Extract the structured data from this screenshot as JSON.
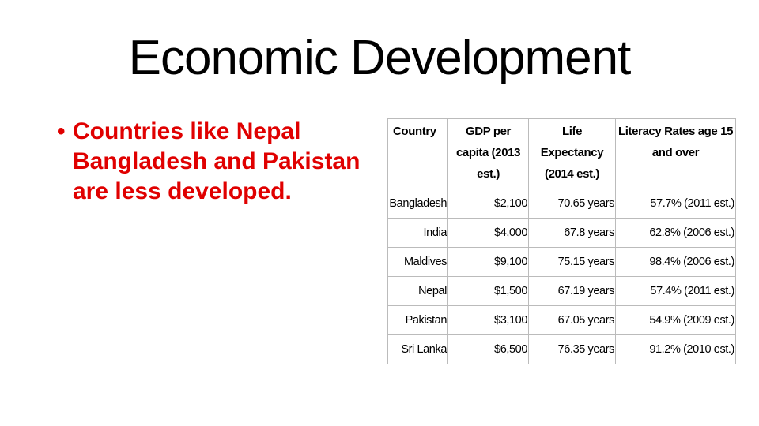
{
  "title": "Economic Development",
  "bullet": "Countries like Nepal Bangladesh and Pakistan are less developed.",
  "table": {
    "header": [
      "Country",
      "GDP per capita (2013 est.)",
      "Life Expectancy (2014 est.)",
      "Literacy Rates age 15 and over"
    ],
    "rows": [
      [
        "Bangladesh",
        "$2,100",
        "70.65 years",
        "57.7% (2011 est.)"
      ],
      [
        "India",
        "$4,000",
        "67.8 years",
        "62.8% (2006 est.)"
      ],
      [
        "Maldives",
        "$9,100",
        "75.15 years",
        "98.4% (2006 est.)"
      ],
      [
        "Nepal",
        "$1,500",
        "67.19 years",
        "57.4% (2011 est.)"
      ],
      [
        "Pakistan",
        "$3,100",
        "67.05 years",
        "54.9% (2009 est.)"
      ],
      [
        "Sri Lanka",
        "$6,500",
        "76.35 years",
        "91.2% (2010 est.)"
      ]
    ]
  }
}
